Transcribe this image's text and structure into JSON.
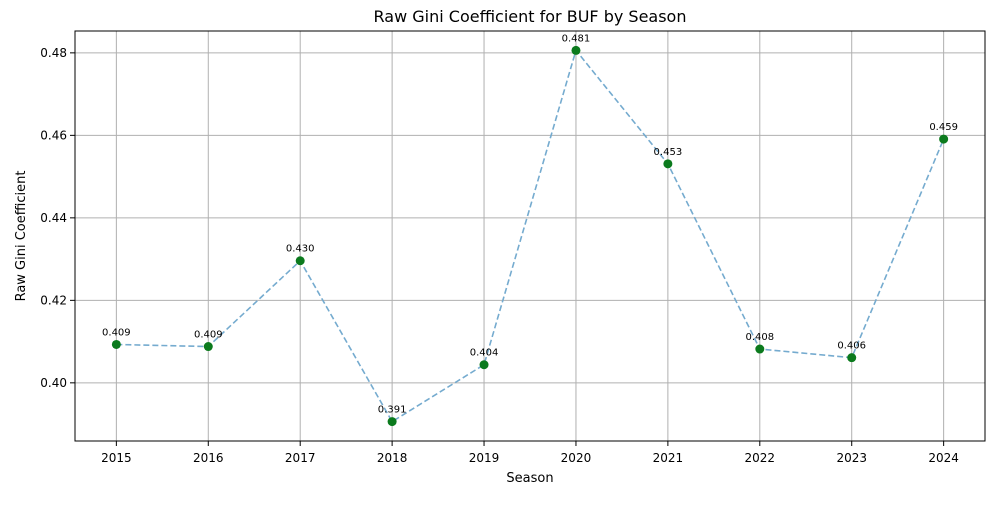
{
  "chart_data": {
    "type": "line",
    "title": "Raw Gini Coefficient for BUF by Season",
    "xlabel": "Season",
    "ylabel": "Raw Gini Coefficient",
    "x": [
      2015,
      2016,
      2017,
      2018,
      2019,
      2020,
      2021,
      2022,
      2023,
      2024
    ],
    "x_tick_labels": [
      "2015",
      "2016",
      "2017",
      "2018",
      "2019",
      "2020",
      "2021",
      "2022",
      "2023",
      "2024"
    ],
    "xlim": [
      2014.55,
      2024.45
    ],
    "series": [
      {
        "values": [
          0.4093,
          0.4088,
          0.4296,
          0.3906,
          0.4044,
          0.4806,
          0.4531,
          0.4082,
          0.4061,
          0.4591
        ],
        "data_labels": [
          "0.409",
          "0.409",
          "0.430",
          "0.391",
          "0.404",
          "0.481",
          "0.453",
          "0.408",
          "0.406",
          "0.459"
        ],
        "line_color": "#75abcf",
        "line_style": "dashed",
        "marker_color": "#0b7a1d"
      }
    ],
    "y_ticks": [
      0.4,
      0.42,
      0.44,
      0.46,
      0.48
    ],
    "y_tick_labels": [
      "0.40",
      "0.42",
      "0.44",
      "0.46",
      "0.48"
    ],
    "ylim": [
      0.3859,
      0.4853
    ],
    "grid": true
  }
}
